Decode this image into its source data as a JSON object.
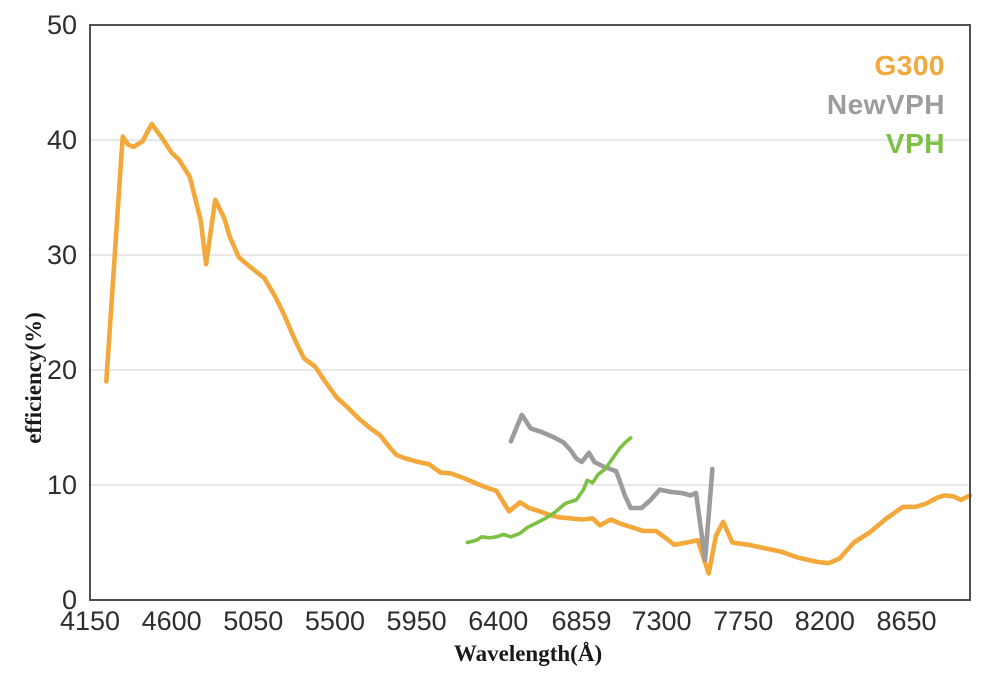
{
  "chart_data": {
    "type": "line",
    "title": "",
    "xlabel": "Wavelength(Å)",
    "ylabel": "efficiency(%)",
    "xlim": [
      4150,
      9000
    ],
    "ylim": [
      0,
      50
    ],
    "grid": {
      "horizontal": true,
      "vertical": false,
      "color": "#d9d9d9"
    },
    "axis_color": "#4f4f4f",
    "tick_label_color": "#2e2e2e",
    "legend_position": "top-right",
    "x_ticks": [
      {
        "value": 4150,
        "label": "4150"
      },
      {
        "value": 4600,
        "label": "4600"
      },
      {
        "value": 5050,
        "label": "5050"
      },
      {
        "value": 5500,
        "label": "5500"
      },
      {
        "value": 5950,
        "label": "5950"
      },
      {
        "value": 6400,
        "label": "6400"
      },
      {
        "value": 6859,
        "label": "6859"
      },
      {
        "value": 7300,
        "label": "7300"
      },
      {
        "value": 7750,
        "label": "7750"
      },
      {
        "value": 8200,
        "label": "8200"
      },
      {
        "value": 8650,
        "label": "8650"
      }
    ],
    "y_ticks": [
      {
        "value": 0,
        "label": "0"
      },
      {
        "value": 10,
        "label": "10"
      },
      {
        "value": 20,
        "label": "20"
      },
      {
        "value": 30,
        "label": "30"
      },
      {
        "value": 40,
        "label": "40"
      },
      {
        "value": 50,
        "label": "50"
      }
    ],
    "series": [
      {
        "name": "G300",
        "color": "#f3a83c",
        "width": 4.6,
        "points": [
          [
            4240,
            19.0
          ],
          [
            4330,
            40.3
          ],
          [
            4360,
            39.6
          ],
          [
            4390,
            39.4
          ],
          [
            4440,
            39.9
          ],
          [
            4490,
            41.4
          ],
          [
            4550,
            40.1
          ],
          [
            4600,
            38.9
          ],
          [
            4640,
            38.3
          ],
          [
            4700,
            36.8
          ],
          [
            4760,
            33.0
          ],
          [
            4790,
            29.2
          ],
          [
            4840,
            34.8
          ],
          [
            4890,
            33.2
          ],
          [
            4920,
            31.6
          ],
          [
            4970,
            29.8
          ],
          [
            5000,
            29.4
          ],
          [
            5030,
            29.0
          ],
          [
            5110,
            28.0
          ],
          [
            5170,
            26.4
          ],
          [
            5220,
            24.8
          ],
          [
            5280,
            22.6
          ],
          [
            5330,
            21.0
          ],
          [
            5390,
            20.3
          ],
          [
            5450,
            18.9
          ],
          [
            5510,
            17.6
          ],
          [
            5560,
            16.9
          ],
          [
            5630,
            15.8
          ],
          [
            5690,
            15.0
          ],
          [
            5750,
            14.3
          ],
          [
            5800,
            13.3
          ],
          [
            5840,
            12.6
          ],
          [
            5890,
            12.3
          ],
          [
            5960,
            12.0
          ],
          [
            6020,
            11.8
          ],
          [
            6080,
            11.1
          ],
          [
            6140,
            11.0
          ],
          [
            6210,
            10.6
          ],
          [
            6270,
            10.2
          ],
          [
            6330,
            9.8
          ],
          [
            6390,
            9.5
          ],
          [
            6420,
            8.7
          ],
          [
            6460,
            7.7
          ],
          [
            6520,
            8.5
          ],
          [
            6570,
            8.0
          ],
          [
            6630,
            7.7
          ],
          [
            6680,
            7.4
          ],
          [
            6730,
            7.2
          ],
          [
            6800,
            7.1
          ],
          [
            6860,
            7.0
          ],
          [
            6920,
            7.1
          ],
          [
            6960,
            6.5
          ],
          [
            7020,
            7.0
          ],
          [
            7080,
            6.6
          ],
          [
            7140,
            6.3
          ],
          [
            7200,
            6.0
          ],
          [
            7270,
            6.0
          ],
          [
            7330,
            5.3
          ],
          [
            7370,
            4.8
          ],
          [
            7440,
            5.0
          ],
          [
            7500,
            5.2
          ],
          [
            7560,
            2.3
          ],
          [
            7600,
            5.6
          ],
          [
            7640,
            6.8
          ],
          [
            7690,
            5.0
          ],
          [
            7780,
            4.8
          ],
          [
            7870,
            4.5
          ],
          [
            7960,
            4.2
          ],
          [
            8050,
            3.7
          ],
          [
            8160,
            3.3
          ],
          [
            8220,
            3.2
          ],
          [
            8280,
            3.6
          ],
          [
            8360,
            5.0
          ],
          [
            8450,
            5.9
          ],
          [
            8540,
            7.1
          ],
          [
            8630,
            8.1
          ],
          [
            8700,
            8.1
          ],
          [
            8760,
            8.4
          ],
          [
            8820,
            8.9
          ],
          [
            8860,
            9.1
          ],
          [
            8910,
            9.0
          ],
          [
            8950,
            8.7
          ],
          [
            9000,
            9.1
          ]
        ]
      },
      {
        "name": "NewVPH",
        "color": "#9c9c9c",
        "width": 4.6,
        "points": [
          [
            6470,
            13.8
          ],
          [
            6530,
            16.1
          ],
          [
            6580,
            14.9
          ],
          [
            6640,
            14.6
          ],
          [
            6700,
            14.2
          ],
          [
            6760,
            13.7
          ],
          [
            6800,
            13.0
          ],
          [
            6830,
            12.3
          ],
          [
            6860,
            12.0
          ],
          [
            6900,
            12.8
          ],
          [
            6930,
            12.0
          ],
          [
            6980,
            11.6
          ],
          [
            7050,
            11.2
          ],
          [
            7100,
            9.0
          ],
          [
            7130,
            8.0
          ],
          [
            7190,
            8.0
          ],
          [
            7240,
            8.7
          ],
          [
            7290,
            9.6
          ],
          [
            7350,
            9.4
          ],
          [
            7410,
            9.3
          ],
          [
            7460,
            9.1
          ],
          [
            7490,
            9.3
          ],
          [
            7540,
            3.5
          ],
          [
            7580,
            11.4
          ]
        ]
      },
      {
        "name": "VPH",
        "color": "#7cc143",
        "width": 3.6,
        "points": [
          [
            6230,
            5.0
          ],
          [
            6280,
            5.2
          ],
          [
            6310,
            5.5
          ],
          [
            6350,
            5.4
          ],
          [
            6390,
            5.5
          ],
          [
            6430,
            5.7
          ],
          [
            6470,
            5.5
          ],
          [
            6520,
            5.8
          ],
          [
            6560,
            6.3
          ],
          [
            6610,
            6.7
          ],
          [
            6660,
            7.1
          ],
          [
            6710,
            7.6
          ],
          [
            6770,
            8.4
          ],
          [
            6830,
            8.7
          ],
          [
            6870,
            9.6
          ],
          [
            6890,
            10.4
          ],
          [
            6920,
            10.2
          ],
          [
            6950,
            10.9
          ],
          [
            6990,
            11.4
          ],
          [
            7030,
            12.3
          ],
          [
            7070,
            13.2
          ],
          [
            7100,
            13.7
          ],
          [
            7130,
            14.1
          ]
        ]
      }
    ]
  }
}
